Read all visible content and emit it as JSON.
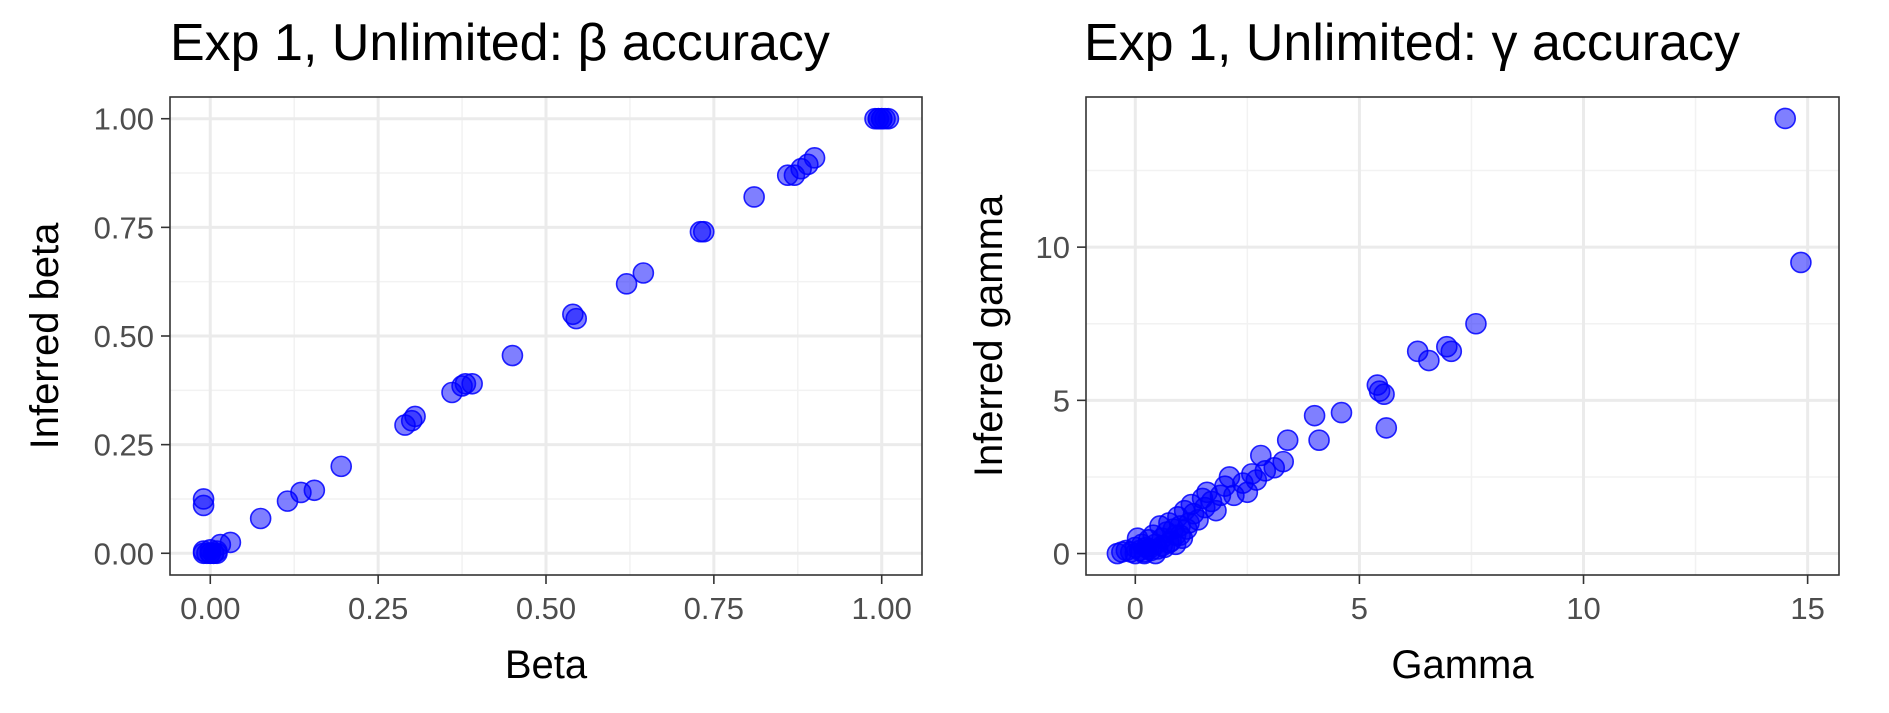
{
  "chart_data": [
    {
      "type": "scatter",
      "title": "Exp 1, Unlimited: β accuracy",
      "xlabel": "Beta",
      "ylabel": "Inferred beta",
      "xlim": [
        -0.06,
        1.06
      ],
      "ylim": [
        -0.05,
        1.05
      ],
      "xticks": [
        0,
        0.25,
        0.5,
        0.75,
        1
      ],
      "xtick_labels": [
        "0.00",
        "0.25",
        "0.50",
        "0.75",
        "1.00"
      ],
      "yticks": [
        0,
        0.25,
        0.5,
        0.75,
        1
      ],
      "ytick_labels": [
        "0.00",
        "0.25",
        "0.50",
        "0.75",
        "1.00"
      ],
      "grid": true,
      "color": "#0000ff",
      "points": [
        [
          -0.01,
          0.11
        ],
        [
          -0.01,
          0.125
        ],
        [
          -0.01,
          0.0
        ],
        [
          -0.005,
          0.0
        ],
        [
          0.0,
          0.0
        ],
        [
          0.005,
          0.0
        ],
        [
          0.01,
          0.0
        ],
        [
          -0.01,
          0.005
        ],
        [
          0.0,
          0.008
        ],
        [
          0.01,
          0.005
        ],
        [
          0.005,
          0.0
        ],
        [
          0.0,
          0.0
        ],
        [
          0.015,
          0.02
        ],
        [
          0.03,
          0.025
        ],
        [
          0.075,
          0.08
        ],
        [
          0.115,
          0.12
        ],
        [
          0.135,
          0.14
        ],
        [
          0.155,
          0.145
        ],
        [
          0.195,
          0.2
        ],
        [
          0.29,
          0.295
        ],
        [
          0.3,
          0.305
        ],
        [
          0.305,
          0.315
        ],
        [
          0.36,
          0.37
        ],
        [
          0.375,
          0.385
        ],
        [
          0.38,
          0.39
        ],
        [
          0.39,
          0.39
        ],
        [
          0.45,
          0.455
        ],
        [
          0.54,
          0.55
        ],
        [
          0.545,
          0.54
        ],
        [
          0.62,
          0.62
        ],
        [
          0.645,
          0.645
        ],
        [
          0.73,
          0.74
        ],
        [
          0.735,
          0.74
        ],
        [
          0.81,
          0.82
        ],
        [
          0.86,
          0.87
        ],
        [
          0.87,
          0.87
        ],
        [
          0.88,
          0.885
        ],
        [
          0.89,
          0.895
        ],
        [
          0.9,
          0.91
        ],
        [
          0.99,
          1.0
        ],
        [
          0.995,
          1.0
        ],
        [
          1.0,
          1.0
        ],
        [
          1.005,
          1.0
        ],
        [
          1.01,
          1.0
        ],
        [
          0.995,
          1.0
        ],
        [
          1.0,
          1.0
        ]
      ]
    },
    {
      "type": "scatter",
      "title": "Exp 1, Unlimited: γ accuracy",
      "xlabel": "Gamma",
      "ylabel": "Inferred gamma",
      "xlim": [
        -1.1,
        15.7
      ],
      "ylim": [
        -0.7,
        14.9
      ],
      "xticks": [
        0,
        5,
        10,
        15
      ],
      "xtick_labels": [
        "0",
        "5",
        "10",
        "15"
      ],
      "yticks": [
        0,
        5,
        10
      ],
      "ytick_labels": [
        "0",
        "5",
        "10"
      ],
      "grid": true,
      "color": "#0000ff",
      "points": [
        [
          -0.4,
          0.0
        ],
        [
          -0.3,
          0.05
        ],
        [
          -0.2,
          0.1
        ],
        [
          -0.1,
          0.05
        ],
        [
          0.0,
          0.0
        ],
        [
          0.0,
          0.2
        ],
        [
          0.05,
          0.5
        ],
        [
          0.1,
          0.1
        ],
        [
          0.15,
          0.3
        ],
        [
          0.2,
          0.0
        ],
        [
          0.25,
          0.2
        ],
        [
          0.3,
          0.45
        ],
        [
          0.35,
          0.1
        ],
        [
          0.4,
          0.6
        ],
        [
          0.45,
          0.3
        ],
        [
          0.5,
          0.15
        ],
        [
          0.55,
          0.9
        ],
        [
          0.6,
          0.5
        ],
        [
          0.65,
          0.2
        ],
        [
          0.7,
          0.7
        ],
        [
          0.75,
          1.0
        ],
        [
          0.8,
          0.4
        ],
        [
          0.85,
          0.8
        ],
        [
          0.9,
          0.6
        ],
        [
          0.95,
          1.2
        ],
        [
          1.0,
          0.9
        ],
        [
          1.05,
          0.5
        ],
        [
          1.1,
          1.4
        ],
        [
          1.2,
          1.0
        ],
        [
          1.25,
          1.6
        ],
        [
          1.3,
          1.3
        ],
        [
          1.4,
          1.1
        ],
        [
          1.5,
          1.8
        ],
        [
          1.55,
          1.5
        ],
        [
          1.6,
          2.0
        ],
        [
          1.7,
          1.7
        ],
        [
          1.8,
          1.4
        ],
        [
          1.9,
          1.9
        ],
        [
          2.0,
          2.2
        ],
        [
          2.1,
          2.5
        ],
        [
          2.2,
          1.9
        ],
        [
          2.4,
          2.3
        ],
        [
          2.5,
          2.0
        ],
        [
          2.6,
          2.6
        ],
        [
          2.7,
          2.4
        ],
        [
          2.8,
          3.2
        ],
        [
          2.9,
          2.7
        ],
        [
          3.1,
          2.8
        ],
        [
          3.3,
          3.0
        ],
        [
          3.4,
          3.7
        ],
        [
          4.0,
          4.5
        ],
        [
          4.1,
          3.7
        ],
        [
          4.6,
          4.6
        ],
        [
          5.4,
          5.5
        ],
        [
          5.45,
          5.3
        ],
        [
          5.55,
          5.2
        ],
        [
          5.6,
          4.1
        ],
        [
          6.3,
          6.6
        ],
        [
          6.55,
          6.3
        ],
        [
          6.95,
          6.75
        ],
        [
          7.05,
          6.6
        ],
        [
          7.6,
          7.5
        ],
        [
          14.5,
          14.2
        ],
        [
          14.85,
          9.5
        ],
        [
          0.2,
          0.05
        ],
        [
          0.3,
          0.15
        ],
        [
          0.45,
          0.0
        ],
        [
          0.6,
          0.25
        ],
        [
          0.75,
          0.35
        ],
        [
          0.9,
          0.3
        ],
        [
          1.0,
          0.6
        ],
        [
          1.15,
          0.8
        ]
      ]
    }
  ]
}
